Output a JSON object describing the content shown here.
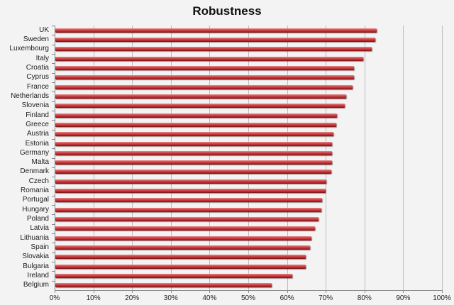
{
  "chart_data": {
    "type": "bar",
    "orientation": "horizontal",
    "title": "Robustness",
    "xlabel": "",
    "ylabel": "",
    "xlim": [
      0,
      100
    ],
    "x_ticks": [
      "0%",
      "10%",
      "20%",
      "30%",
      "40%",
      "50%",
      "60%",
      "70%",
      "80%",
      "90%",
      "100%"
    ],
    "grid": true,
    "legend": null,
    "bar_color": "#c83c40",
    "categories": [
      "UK",
      "Sweden",
      "Luxembourg",
      "Italy",
      "Croatia",
      "Cyprus",
      "France",
      "Netherlands",
      "Slovenia",
      "Finland",
      "Greece",
      "Austria",
      "Estonia",
      "Germany",
      "Malta",
      "Denmark",
      "Czech",
      "Romania",
      "Portugal",
      "Hungary",
      "Poland",
      "Latvia",
      "Lithuania",
      "Spain",
      "Slovakia",
      "Bulgaria",
      "Ireland",
      "Belgium"
    ],
    "values": [
      83.0,
      82.6,
      81.7,
      79.5,
      77.1,
      77.1,
      76.7,
      75.1,
      74.7,
      72.7,
      72.5,
      71.8,
      71.4,
      71.4,
      71.4,
      71.2,
      69.9,
      69.7,
      68.8,
      68.6,
      67.9,
      67.0,
      66.1,
      65.7,
      64.6,
      64.6,
      61.2,
      55.9
    ]
  }
}
